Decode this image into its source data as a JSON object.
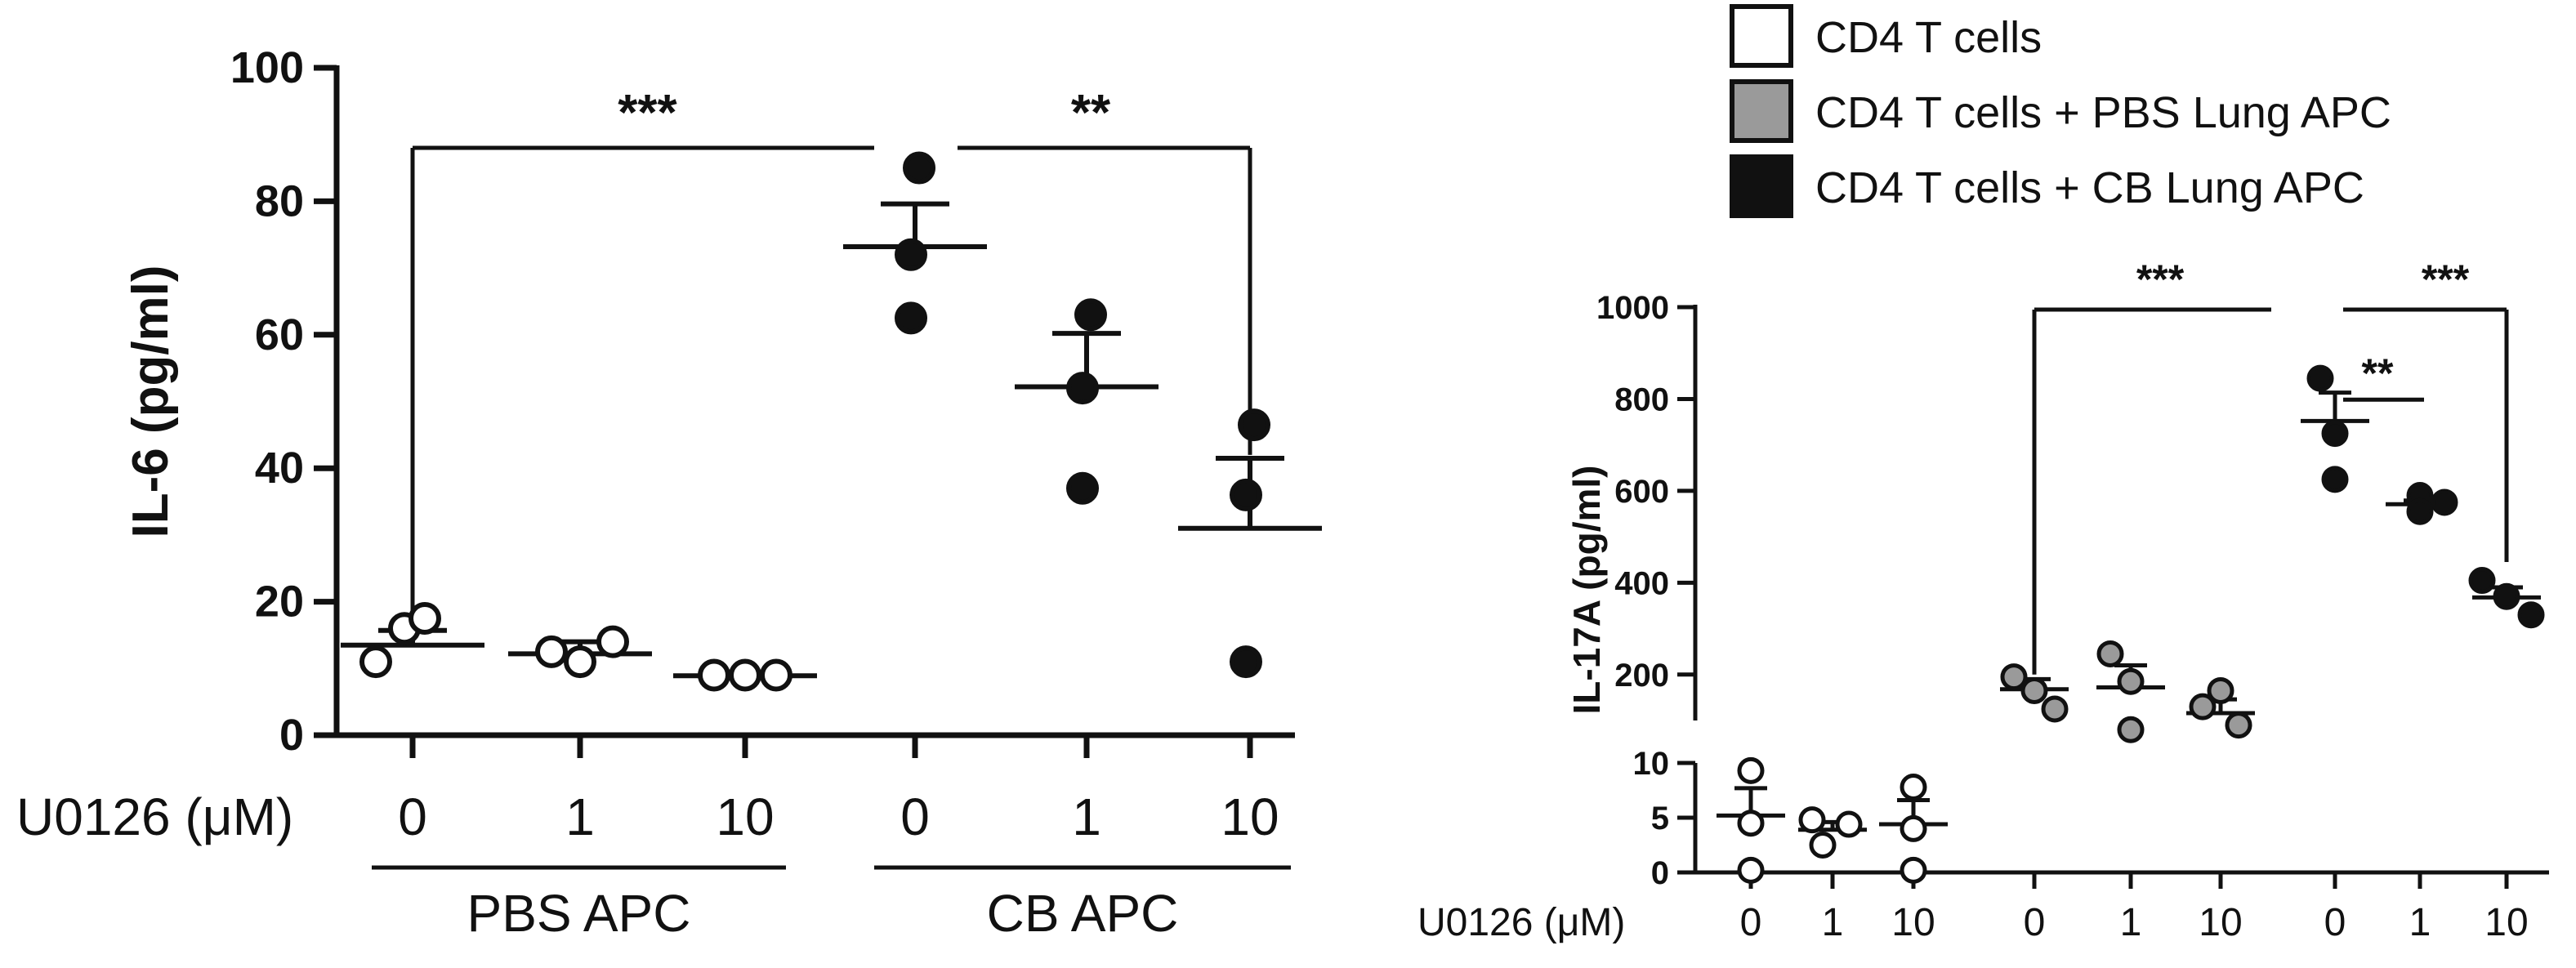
{
  "legend": {
    "position": "top-right",
    "items": [
      {
        "label": "CD4 T cells",
        "fill": "#ffffff"
      },
      {
        "label": "CD4 T cells + PBS Lung APC",
        "fill": "#9a9a9a"
      },
      {
        "label": "CD4 T cells + CB Lung APC",
        "fill": "#111111"
      }
    ]
  },
  "chart_data": [
    {
      "type": "scatter",
      "ylabel": "IL-6 (pg/ml)",
      "ylim": [
        0,
        100
      ],
      "yticks": [
        "0",
        "20",
        "40",
        "60",
        "80",
        "100"
      ],
      "xlabel_prefix": "U0126 (μM)",
      "categories": [
        "0",
        "1",
        "10",
        "0",
        "1",
        "10"
      ],
      "groups": [
        {
          "label": "PBS APC",
          "range": [
            0,
            2
          ]
        },
        {
          "label": "CB APC",
          "range": [
            3,
            5
          ]
        }
      ],
      "series": [
        {
          "fill": "#ffffff",
          "points": [
            [
              16,
              17.5,
              11
            ],
            [
              12.5,
              14,
              11
            ],
            [
              9,
              9,
              9
            ]
          ]
        },
        {
          "fill": "#111111",
          "points": [
            [
              85,
              62.5,
              72
            ],
            [
              63,
              52,
              37
            ],
            [
              46.5,
              36,
              11
            ]
          ]
        }
      ],
      "means": [
        13.5,
        12.2,
        8.9,
        73.2,
        52.2,
        31
      ],
      "sems": [
        2.2,
        1.8,
        0.3,
        6.4,
        8,
        10.5
      ],
      "significance": [
        {
          "label": "***",
          "from": 0,
          "to": 3,
          "y": 88
        },
        {
          "label": "**",
          "from": 3,
          "to": 5,
          "y": 88
        }
      ]
    },
    {
      "type": "scatter",
      "ylabel": "IL-17A (pg/ml)",
      "axis_break": true,
      "upper_yticks": [
        "200",
        "400",
        "600",
        "800",
        "1000"
      ],
      "lower_yticks": [
        "0",
        "5",
        "10"
      ],
      "xlabel_prefix": "U0126 (μM)",
      "categories": [
        "0",
        "1",
        "10",
        "0",
        "1",
        "10",
        "0",
        "1",
        "10"
      ],
      "series": [
        {
          "fill": "#ffffff",
          "points": [
            [
              9.3,
              4.5,
              0.2
            ],
            [
              4.8,
              4.4,
              2.5
            ],
            [
              7.8,
              4,
              0.2
            ]
          ]
        },
        {
          "fill": "#9a9a9a",
          "points": [
            [
              195,
              165,
              125
            ],
            [
              245,
              185,
              80
            ],
            [
              165,
              130,
              90
            ]
          ]
        },
        {
          "fill": "#111111",
          "points": [
            [
              845,
              725,
              625
            ],
            [
              590,
              575,
              555
            ],
            [
              405,
              370,
              330
            ]
          ]
        }
      ],
      "means": [
        5.2,
        3.9,
        4.4,
        168,
        172,
        116,
        752,
        571,
        368
      ],
      "sems": [
        2.5,
        0.7,
        2.2,
        22,
        48,
        30,
        62,
        8,
        22
      ],
      "significance": [
        {
          "label": "***",
          "from": 3,
          "to": 6,
          "y": 1000
        },
        {
          "label": "***",
          "from": 6,
          "to": 8,
          "y": 1000
        },
        {
          "label": "**",
          "from": 6,
          "to": 7,
          "y": 820
        }
      ]
    }
  ]
}
